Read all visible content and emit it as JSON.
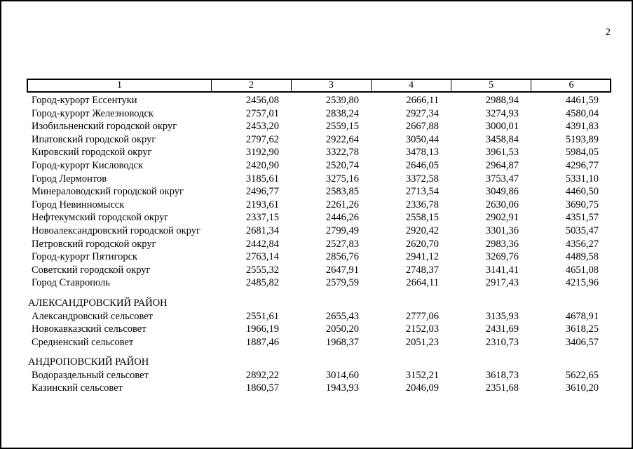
{
  "page_number": "2",
  "table": {
    "headers": [
      "1",
      "2",
      "3",
      "4",
      "5",
      "6"
    ],
    "sections": [
      {
        "title": "",
        "rows": [
          {
            "name": "Город-курорт Ессентуки",
            "values": [
              "2456,08",
              "2539,80",
              "2666,11",
              "2988,94",
              "4461,59"
            ]
          },
          {
            "name": "Город-курорт Железноводск",
            "values": [
              "2757,01",
              "2838,24",
              "2927,34",
              "3274,93",
              "4580,04"
            ]
          },
          {
            "name": "Изобильненский городской округ",
            "values": [
              "2453,20",
              "2559,15",
              "2667,88",
              "3000,01",
              "4391,83"
            ]
          },
          {
            "name": "Ипатовский городской округ",
            "values": [
              "2797,62",
              "2922,64",
              "3050,44",
              "3458,84",
              "5193,89"
            ]
          },
          {
            "name": "Кировский городской округ",
            "values": [
              "3192,90",
              "3322,78",
              "3478,13",
              "3961,53",
              "5984,05"
            ]
          },
          {
            "name": "Город-курорт Кисловодск",
            "values": [
              "2420,90",
              "2520,74",
              "2646,05",
              "2964,87",
              "4296,77"
            ]
          },
          {
            "name": "Город Лермонтов",
            "values": [
              "3185,61",
              "3275,16",
              "3372,58",
              "3753,47",
              "5331,10"
            ]
          },
          {
            "name": "Минераловодский городской округ",
            "values": [
              "2496,77",
              "2583,85",
              "2713,54",
              "3049,86",
              "4460,50"
            ]
          },
          {
            "name": "Город Невинномысск",
            "values": [
              "2193,61",
              "2261,26",
              "2336,78",
              "2630,06",
              "3690,75"
            ]
          },
          {
            "name": "Нефтекумский городской округ",
            "values": [
              "2337,15",
              "2446,26",
              "2558,15",
              "2902,91",
              "4351,57"
            ]
          },
          {
            "name": "Новоалександровский городской округ",
            "values": [
              "2681,34",
              "2799,49",
              "2920,42",
              "3301,36",
              "5035,47"
            ]
          },
          {
            "name": "Петровский городской округ",
            "values": [
              "2442,84",
              "2527,83",
              "2620,70",
              "2983,36",
              "4356,27"
            ]
          },
          {
            "name": "Город-курорт Пятигорск",
            "values": [
              "2763,14",
              "2856,76",
              "2941,12",
              "3269,76",
              "4489,58"
            ]
          },
          {
            "name": "Советский городской округ",
            "values": [
              "2555,32",
              "2647,91",
              "2748,37",
              "3141,41",
              "4651,08"
            ]
          },
          {
            "name": "Город Ставрополь",
            "values": [
              "2485,82",
              "2579,59",
              "2664,11",
              "2917,43",
              "4215,96"
            ]
          }
        ]
      },
      {
        "title": "АЛЕКСАНДРОВСКИЙ РАЙОН",
        "rows": [
          {
            "name": "Александровский сельсовет",
            "values": [
              "2551,61",
              "2655,43",
              "2777,06",
              "3135,93",
              "4678,91"
            ]
          },
          {
            "name": "Новокавказский сельсовет",
            "values": [
              "1966,19",
              "2050,20",
              "2152,03",
              "2431,69",
              "3618,25"
            ]
          },
          {
            "name": "Средненский сельсовет",
            "values": [
              "1887,46",
              "1968,37",
              "2051,23",
              "2310,73",
              "3406,57"
            ]
          }
        ]
      },
      {
        "title": "АНДРОПОВСКИЙ РАЙОН",
        "rows": [
          {
            "name": "Водораздельный сельсовет",
            "values": [
              "2892,22",
              "3014,60",
              "3152,21",
              "3618,73",
              "5622,65"
            ]
          },
          {
            "name": "Казинский сельсовет",
            "values": [
              "1860,57",
              "1943,93",
              "2046,09",
              "2351,68",
              "3610,20"
            ]
          }
        ]
      }
    ]
  }
}
